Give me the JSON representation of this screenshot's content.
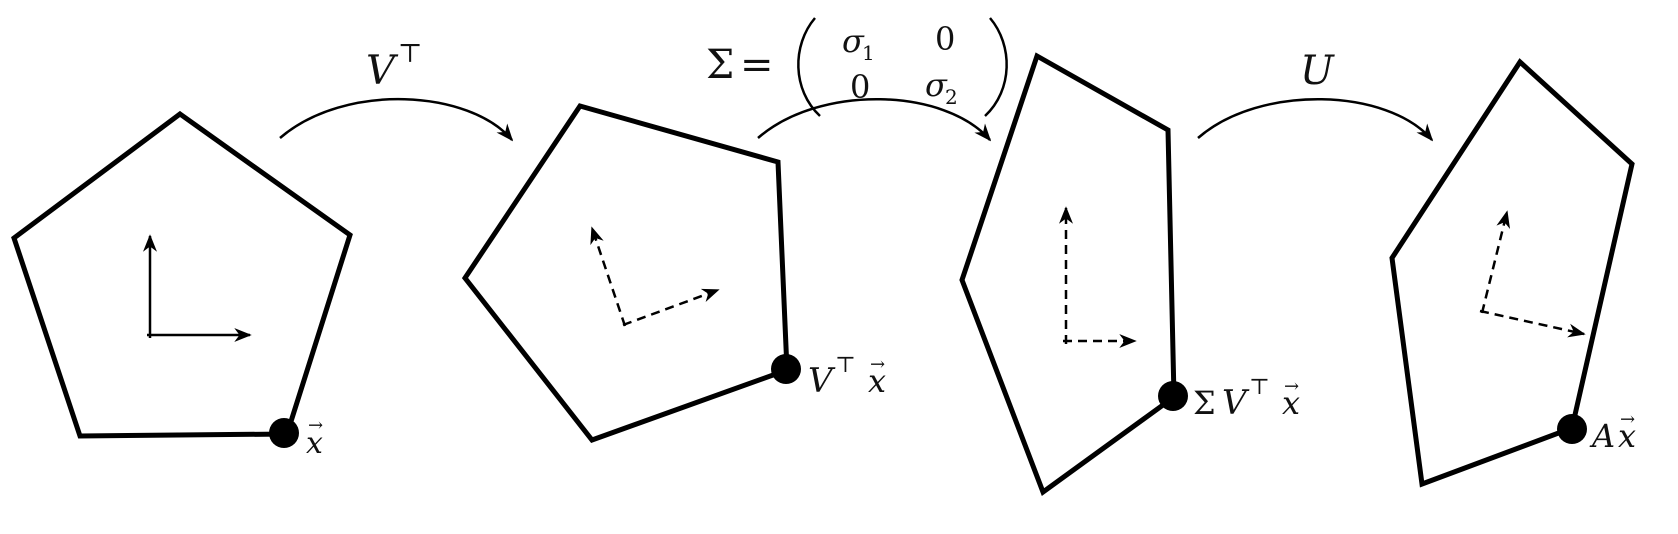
{
  "labels": {
    "point_x": "x",
    "point_vtx_V": "V",
    "point_vtx_T": "⊤",
    "point_vtx_x": "x",
    "point_svtx_S": "Σ",
    "point_svtx_V": "V",
    "point_svtx_T": "⊤",
    "point_svtx_x": "x",
    "point_ax_A": "A",
    "point_ax_x": "x"
  },
  "arrows": {
    "vt_V": "V",
    "vt_T": "⊤",
    "u_label": "U"
  },
  "sigma_matrix": {
    "lhs": "Σ",
    "equals": "=",
    "a11_sym": "σ",
    "a11_sub": "1",
    "a12": "0",
    "a21": "0",
    "a22_sym": "σ",
    "a22_sub": "2"
  },
  "vector_accent": "⃗",
  "colors": {
    "stroke": "#000000",
    "background": "#ffffff"
  }
}
